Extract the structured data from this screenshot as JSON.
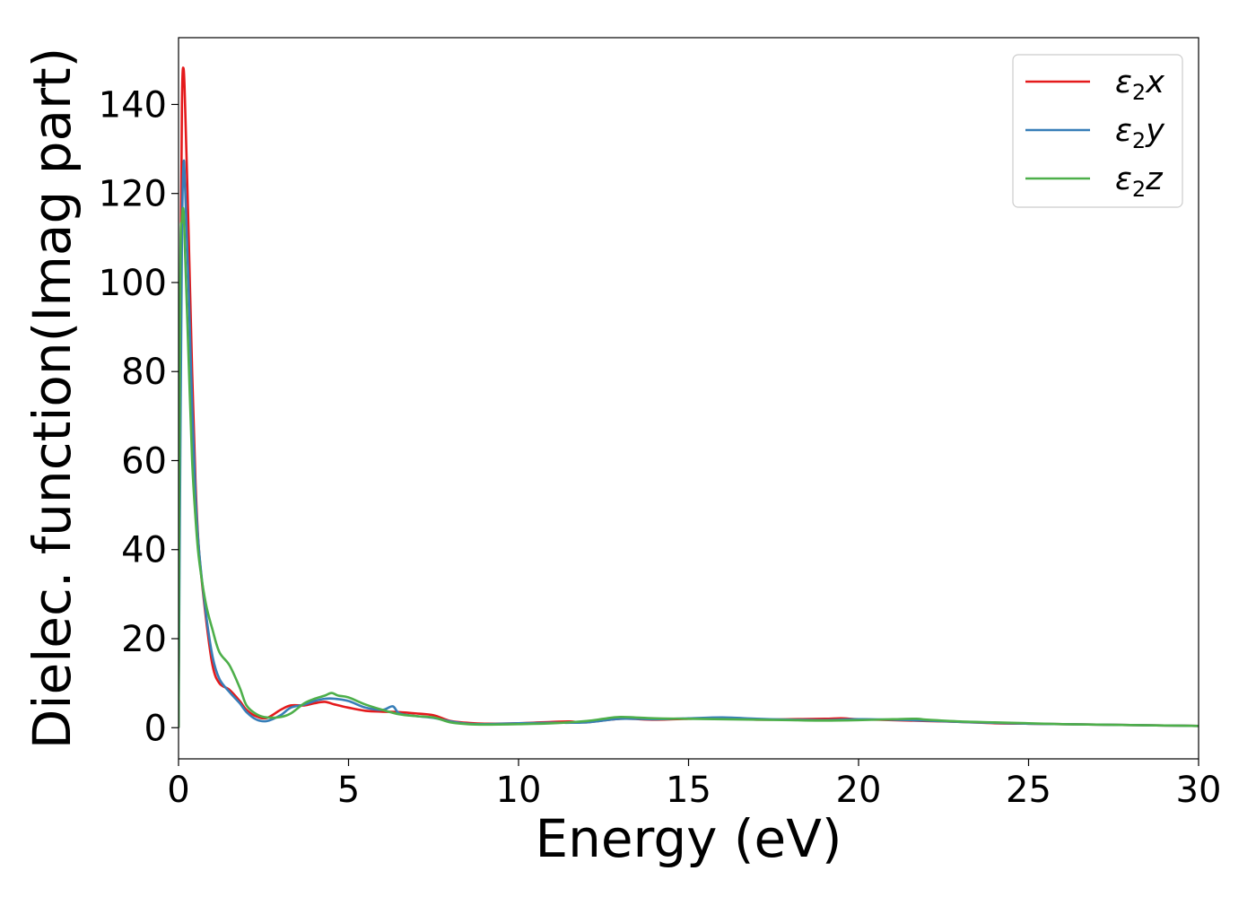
{
  "chart_data": {
    "type": "line",
    "title": "",
    "xlabel": "Energy (eV)",
    "ylabel": "Dielec. function(Imag part)",
    "xlim": [
      0,
      30
    ],
    "ylim": [
      -7,
      155
    ],
    "xticks": [
      0,
      5,
      10,
      15,
      20,
      25,
      30
    ],
    "yticks": [
      0,
      20,
      40,
      60,
      80,
      100,
      120,
      140
    ],
    "grid": false,
    "legend_position": "top-right",
    "series": [
      {
        "name": "ε2x",
        "legend": {
          "symbol": "ε",
          "sub": "2",
          "suffix": "x"
        },
        "color": "#e41a1c",
        "x": [
          0,
          0.05,
          0.1,
          0.15,
          0.2,
          0.3,
          0.4,
          0.5,
          0.6,
          0.8,
          1.0,
          1.2,
          1.5,
          1.8,
          2.0,
          2.3,
          2.6,
          3.0,
          3.3,
          3.7,
          4.0,
          4.3,
          4.6,
          5.0,
          5.5,
          6.0,
          6.5,
          7.0,
          7.5,
          8.0,
          8.5,
          9.0,
          10.0,
          11.0,
          11.5,
          12.0,
          13.0,
          14.0,
          15.0,
          16.0,
          17.0,
          18.0,
          19.0,
          19.5,
          20.0,
          21.0,
          22.0,
          23.0,
          24.0,
          25.0,
          26.0,
          27.0,
          28.0,
          29.0,
          30.0
        ],
        "y": [
          0,
          90,
          140,
          148,
          138,
          110,
          80,
          55,
          40,
          25,
          14,
          10,
          8.5,
          6,
          4,
          2.5,
          2.2,
          4,
          5,
          5,
          5.5,
          5.8,
          5.2,
          4.5,
          3.8,
          3.6,
          3.5,
          3.2,
          2.8,
          1.5,
          1.1,
          0.9,
          1.0,
          1.3,
          1.4,
          1.2,
          2.0,
          1.8,
          2.0,
          2.2,
          1.8,
          1.9,
          2.0,
          2.1,
          1.9,
          1.7,
          1.5,
          1.3,
          1.0,
          0.9,
          0.8,
          0.7,
          0.6,
          0.5,
          0.4
        ]
      },
      {
        "name": "ε2y",
        "legend": {
          "symbol": "ε",
          "sub": "2",
          "suffix": "y"
        },
        "color": "#377eb8",
        "x": [
          0,
          0.05,
          0.1,
          0.15,
          0.2,
          0.3,
          0.4,
          0.5,
          0.6,
          0.8,
          1.0,
          1.2,
          1.5,
          1.8,
          2.0,
          2.3,
          2.6,
          3.0,
          3.3,
          3.7,
          4.0,
          4.3,
          4.6,
          5.0,
          5.5,
          6.0,
          6.3,
          6.5,
          7.0,
          7.5,
          8.0,
          8.5,
          9.0,
          10.0,
          11.0,
          12.0,
          13.0,
          14.0,
          15.0,
          16.0,
          17.0,
          18.0,
          19.0,
          20.0,
          21.0,
          22.0,
          23.0,
          24.0,
          25.0,
          26.0,
          27.0,
          28.0,
          29.0,
          30.0
        ],
        "y": [
          0,
          60,
          110,
          127,
          120,
          98,
          72,
          52,
          40,
          26,
          16,
          11,
          8,
          5.5,
          3.5,
          1.8,
          1.5,
          2.8,
          4.5,
          5.2,
          6.0,
          6.5,
          6.5,
          6.0,
          4.5,
          4.0,
          4.8,
          3.2,
          2.6,
          2.2,
          1.4,
          0.9,
          0.8,
          1.0,
          1.1,
          1.2,
          2.0,
          1.9,
          2.1,
          2.3,
          2.0,
          1.8,
          1.7,
          1.9,
          1.8,
          1.6,
          1.3,
          1.1,
          0.9,
          0.8,
          0.7,
          0.6,
          0.5,
          0.4
        ]
      },
      {
        "name": "ε2z",
        "legend": {
          "symbol": "ε",
          "sub": "2",
          "suffix": "z"
        },
        "color": "#4daf4a",
        "x": [
          0,
          0.05,
          0.1,
          0.15,
          0.2,
          0.3,
          0.4,
          0.5,
          0.6,
          0.8,
          1.0,
          1.2,
          1.5,
          1.8,
          2.0,
          2.3,
          2.6,
          3.0,
          3.3,
          3.7,
          4.0,
          4.3,
          4.5,
          4.7,
          5.0,
          5.5,
          6.0,
          6.5,
          7.0,
          7.5,
          8.0,
          8.5,
          9.0,
          10.0,
          11.0,
          12.0,
          12.5,
          13.0,
          14.0,
          15.0,
          16.0,
          17.0,
          18.0,
          19.0,
          20.0,
          21.0,
          21.7,
          22.0,
          23.0,
          24.0,
          25.0,
          26.0,
          27.0,
          28.0,
          29.0,
          30.0
        ],
        "y": [
          0,
          100,
          114,
          116,
          105,
          82,
          60,
          47,
          38,
          28,
          22,
          17,
          14,
          9,
          5,
          3,
          2.3,
          2.4,
          3.2,
          5.5,
          6.5,
          7.2,
          7.8,
          7.2,
          6.8,
          5.2,
          4.0,
          3.0,
          2.6,
          2.3,
          1.2,
          0.8,
          0.7,
          0.8,
          1.0,
          1.5,
          2.0,
          2.4,
          2.1,
          2.0,
          1.9,
          1.8,
          1.7,
          1.6,
          1.7,
          1.9,
          2.0,
          1.8,
          1.4,
          1.2,
          1.0,
          0.8,
          0.7,
          0.6,
          0.5,
          0.4
        ]
      }
    ]
  }
}
